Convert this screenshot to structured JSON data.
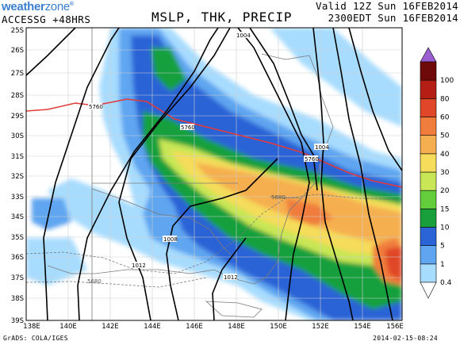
{
  "header": {
    "brand_main": "weather",
    "brand_zone": "zone",
    "brand_mark": "®",
    "model": "ACCESSG +48HRS",
    "title": "MSLP, THK, PRECIP",
    "valid_utc": "Valid 12Z Sun 16FEB2014",
    "valid_local": "2300EDT Sun 16FEB2014"
  },
  "footer": {
    "credit": "GrADS: COLA/IGES",
    "timestamp": "2014-02-15-08:24"
  },
  "axes": {
    "lat_labels": [
      "25S",
      "26S",
      "27S",
      "28S",
      "29S",
      "30S",
      "31S",
      "32S",
      "33S",
      "34S",
      "35S",
      "36S",
      "37S",
      "38S",
      "39S"
    ],
    "lon_labels": [
      "138E",
      "140E",
      "142E",
      "144E",
      "146E",
      "148E",
      "150E",
      "152E",
      "154E",
      "156E"
    ]
  },
  "colorbar": {
    "labels": [
      "0.4",
      "1",
      "5",
      "10",
      "15",
      "20",
      "30",
      "40",
      "50",
      "60",
      "80",
      "100"
    ],
    "colors": [
      "#a7dcff",
      "#5fa5f0",
      "#2a64d6",
      "#19a03c",
      "#64cd3c",
      "#c8e655",
      "#f5dc5a",
      "#f5af50",
      "#f07d3c",
      "#e04628",
      "#b41e14",
      "#6e0a0a"
    ],
    "top_arrow_color": "#9a5ed0"
  },
  "contour_labels": {
    "mslp": [
      "1004",
      "1004",
      "1008",
      "1012",
      "1012"
    ],
    "thickness": [
      "5760",
      "5760",
      "5760",
      "5680",
      "5680"
    ]
  },
  "colors": {
    "thickness_5760_line": "#e23b3b",
    "isobar": "#000000",
    "coast": "#7a7a7a"
  }
}
